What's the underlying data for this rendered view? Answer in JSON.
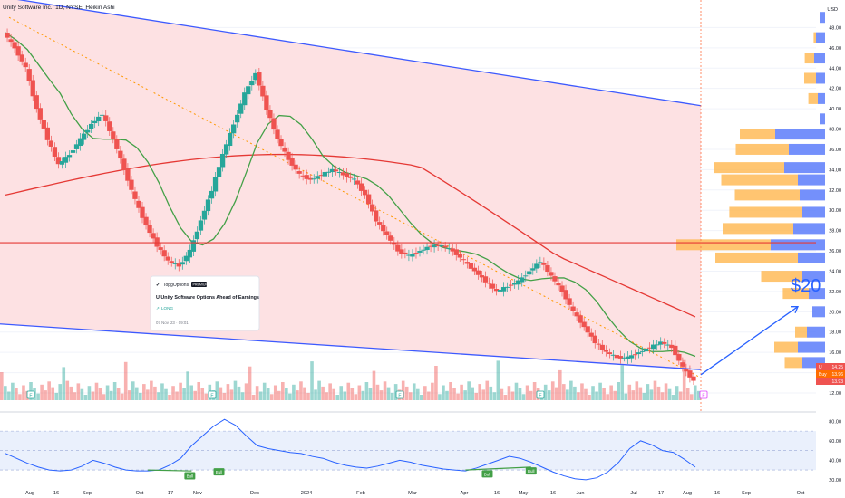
{
  "header": {
    "title": "Unity Software Inc., 1D, NYSE, Heikin Ashi"
  },
  "colors": {
    "up": "#26a69a",
    "down": "#ef5350",
    "channel_fill": "#fde1e3",
    "channel_line": "#3d5afe",
    "ma_long": "#e53935",
    "ma_short": "#43a047",
    "rsi": "#2962ff",
    "forecast": "#2962ff",
    "vp_up": "#ffb74d",
    "vp_down": "#5c7cfa"
  },
  "chart_data": {
    "type": "candlestick",
    "symbol": "U",
    "x_labels": [
      "Aug",
      "16",
      "Sep",
      "Oct",
      "17",
      "Nov",
      "Dec",
      "2024",
      "Feb",
      "Mar",
      "Apr",
      "16",
      "May",
      "16",
      "Jun",
      "Jul",
      "17",
      "Aug",
      "16",
      "Sep",
      "Oct"
    ],
    "price_axis": {
      "unit": "USD",
      "ylim": [
        12,
        50
      ],
      "ticks": [
        "48.00",
        "46.00",
        "44.00",
        "42.00",
        "40.00",
        "38.00",
        "36.00",
        "34.00",
        "32.00",
        "30.00",
        "28.00",
        "26.00",
        "24.00",
        "22.00",
        "20.00",
        "18.00",
        "16.00",
        "14.00",
        "12.00"
      ]
    },
    "price_path": [
      47.5,
      46,
      44,
      40,
      37,
      34.5,
      35.5,
      37,
      38.5,
      39.5,
      37,
      34,
      31,
      28.5,
      26.5,
      25,
      24.5,
      26,
      29,
      32,
      35.5,
      38.5,
      41.5,
      43.5,
      40,
      37,
      35,
      33.5,
      33,
      33.5,
      34,
      33.5,
      33,
      31.5,
      29,
      27.5,
      26,
      25.5,
      26,
      26.5,
      26.5,
      26,
      25,
      24,
      23,
      22,
      22.5,
      23,
      24,
      25,
      23.5,
      22,
      20,
      18.5,
      17,
      16,
      15.5,
      15.5,
      16,
      16.5,
      17,
      16.5,
      14.5,
      13.2
    ],
    "price_labels": [
      {
        "tag": "U",
        "value": "14.25"
      },
      {
        "tag": "Buy",
        "value": "13.96"
      },
      {
        "tag": "",
        "value": "13.93"
      }
    ],
    "channel": {
      "upper": [
        [
          0,
          50.5
        ],
        [
          68,
          40.3
        ]
      ],
      "lower": [
        [
          0,
          18.8
        ],
        [
          68,
          14.3
        ]
      ]
    },
    "horizontal_level": 26.8,
    "forecast_label": "$20",
    "forecast_target": 20.5,
    "rsi": {
      "ticks": [
        "80.00",
        "60.00",
        "40.00",
        "20.00"
      ],
      "ylim": [
        18,
        85
      ],
      "band": [
        30,
        70
      ],
      "values": [
        47,
        42,
        37,
        33,
        30,
        29,
        30,
        34,
        40,
        37,
        33,
        30,
        29,
        29,
        30,
        35,
        42,
        55,
        65,
        75,
        82,
        76,
        65,
        55,
        52,
        50,
        48,
        47,
        44,
        42,
        38,
        35,
        33,
        32,
        34,
        37,
        40,
        38,
        35,
        33,
        31,
        30,
        29,
        32,
        36,
        40,
        44,
        42,
        38,
        33,
        28,
        24,
        21,
        20,
        22,
        28,
        38,
        52,
        60,
        56,
        50,
        48,
        41,
        33
      ]
    },
    "rsi_bull_labels": [
      "Bull",
      "Bull",
      "Bull",
      "Bull",
      "Bull"
    ],
    "earnings_markers": [
      "E",
      "E",
      "E",
      "E",
      "E"
    ]
  },
  "idea_card": {
    "brand": "TopgOptions",
    "badge": "PREMIUM",
    "title": "U Unity Software Options Ahead of Earnings",
    "direction": "LONG",
    "date": "07 Nov '23 · 09:01"
  }
}
